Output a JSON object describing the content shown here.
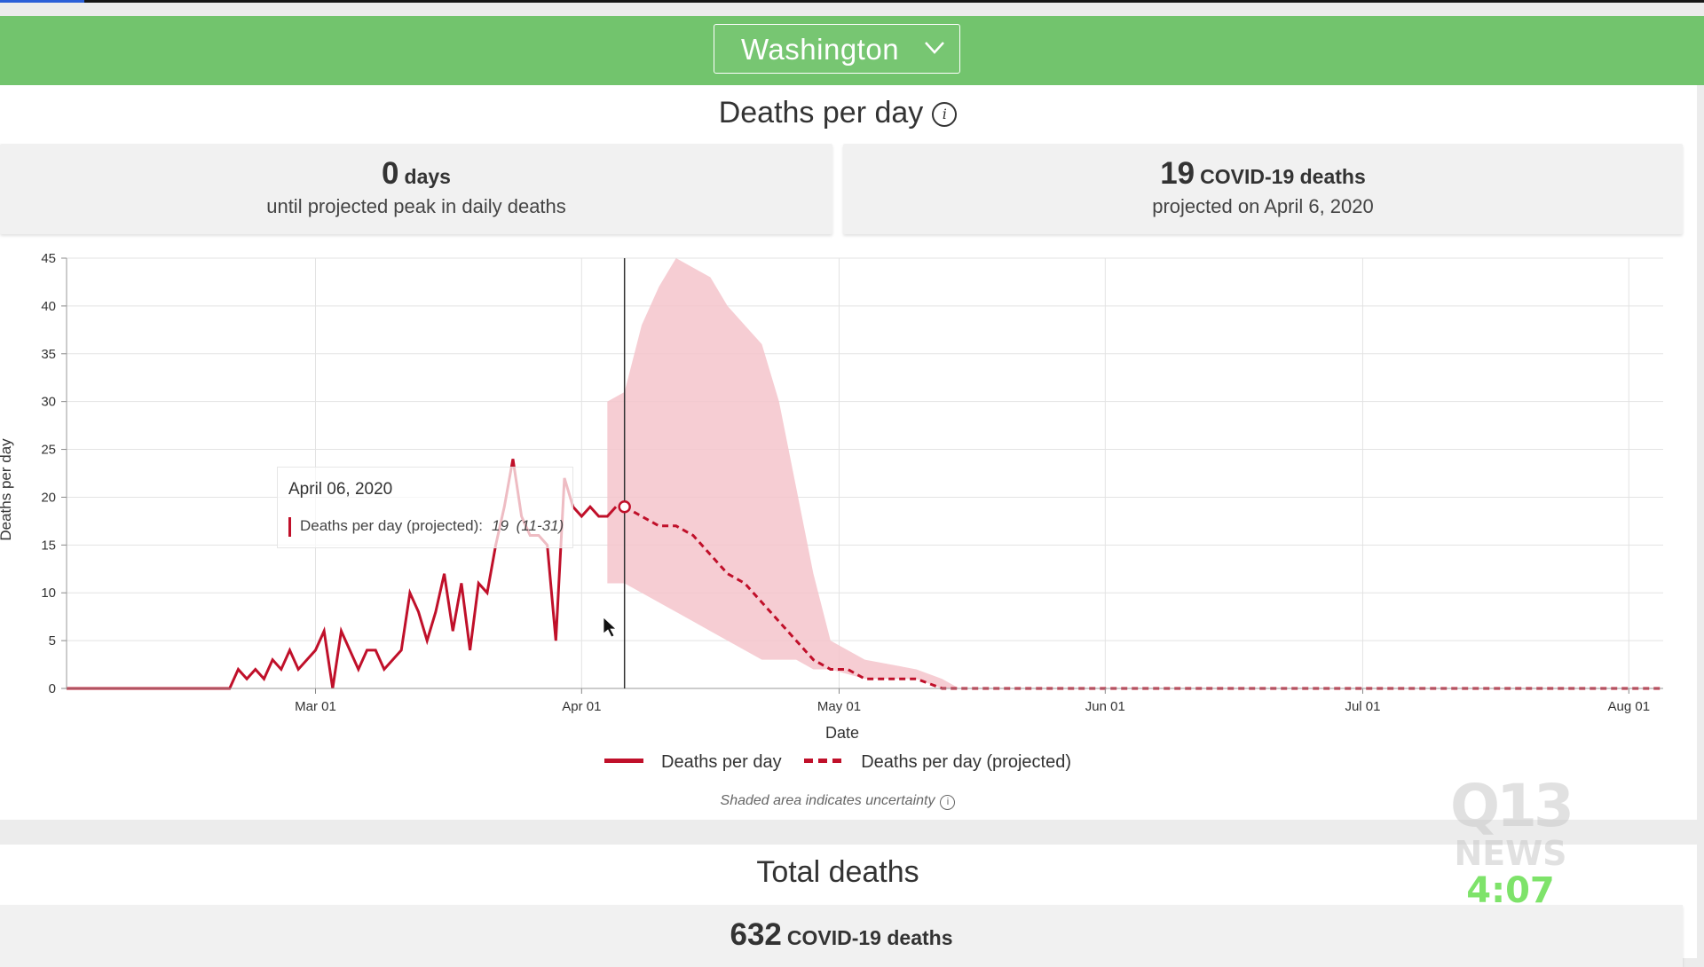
{
  "header": {
    "state_label": "Washington",
    "select_icon": "chevron-down-icon",
    "background_color": "#72c46d"
  },
  "deaths_section": {
    "title": "Deaths per day",
    "info_icon": "i",
    "card_left": {
      "value": "0",
      "unit": "days",
      "caption": "until projected peak in daily deaths"
    },
    "card_right": {
      "value": "19",
      "unit": "COVID-19 deaths",
      "caption": "projected on April 6, 2020"
    }
  },
  "tooltip": {
    "date": "April 06, 2020",
    "series": "Deaths per day (projected):",
    "value": "19",
    "range": "(11-31)"
  },
  "legend": {
    "solid": "Deaths per day",
    "dashed": "Deaths per day (projected)",
    "note": "Shaded area indicates uncertainty",
    "note_icon": "i"
  },
  "total_section": {
    "title": "Total deaths",
    "value": "632",
    "unit": "COVID-19 deaths"
  },
  "watermark": {
    "logo_top": "Q13",
    "logo_bottom": "NEWS",
    "time": "4:07"
  },
  "chart_data": {
    "type": "line",
    "title": "",
    "xlabel": "Date",
    "ylabel": "Deaths per day",
    "x_start": "2020-02-01",
    "x_end": "2020-08-05",
    "ylim": [
      0,
      45
    ],
    "y_ticks": [
      0,
      5,
      10,
      15,
      20,
      25,
      30,
      35,
      40,
      45
    ],
    "x_ticks": [
      {
        "date": "2020-03-01",
        "label": "Mar 01"
      },
      {
        "date": "2020-04-01",
        "label": "Apr 01"
      },
      {
        "date": "2020-05-01",
        "label": "May 01"
      },
      {
        "date": "2020-06-01",
        "label": "Jun 01"
      },
      {
        "date": "2020-07-01",
        "label": "Jul 01"
      },
      {
        "date": "2020-08-01",
        "label": "Aug 01"
      }
    ],
    "grid": true,
    "line_color": "#c0102a",
    "band_color": "#f4c4cb",
    "highlight_date": "2020-04-06",
    "highlight_value": 19,
    "series": [
      {
        "name": "Deaths per day",
        "style": "solid",
        "points": [
          [
            "2020-02-01",
            0
          ],
          [
            "2020-02-20",
            0
          ],
          [
            "2020-02-21",
            2
          ],
          [
            "2020-02-22",
            1
          ],
          [
            "2020-02-23",
            2
          ],
          [
            "2020-02-24",
            1
          ],
          [
            "2020-02-25",
            3
          ],
          [
            "2020-02-26",
            2
          ],
          [
            "2020-02-27",
            4
          ],
          [
            "2020-02-28",
            2
          ],
          [
            "2020-03-01",
            4
          ],
          [
            "2020-03-02",
            6
          ],
          [
            "2020-03-03",
            0
          ],
          [
            "2020-03-04",
            6
          ],
          [
            "2020-03-05",
            4
          ],
          [
            "2020-03-06",
            2
          ],
          [
            "2020-03-07",
            4
          ],
          [
            "2020-03-08",
            4
          ],
          [
            "2020-03-09",
            2
          ],
          [
            "2020-03-10",
            3
          ],
          [
            "2020-03-11",
            4
          ],
          [
            "2020-03-12",
            10
          ],
          [
            "2020-03-13",
            8
          ],
          [
            "2020-03-14",
            5
          ],
          [
            "2020-03-15",
            8
          ],
          [
            "2020-03-16",
            12
          ],
          [
            "2020-03-17",
            6
          ],
          [
            "2020-03-18",
            11
          ],
          [
            "2020-03-19",
            4
          ],
          [
            "2020-03-20",
            11
          ],
          [
            "2020-03-21",
            10
          ],
          [
            "2020-03-22",
            15
          ],
          [
            "2020-03-23",
            19
          ],
          [
            "2020-03-24",
            24
          ],
          [
            "2020-03-25",
            18
          ],
          [
            "2020-03-26",
            16
          ],
          [
            "2020-03-27",
            16
          ],
          [
            "2020-03-28",
            15
          ],
          [
            "2020-03-29",
            5
          ],
          [
            "2020-03-30",
            22
          ],
          [
            "2020-03-31",
            19
          ],
          [
            "2020-04-01",
            18
          ],
          [
            "2020-04-02",
            19
          ],
          [
            "2020-04-03",
            18
          ],
          [
            "2020-04-04",
            18
          ],
          [
            "2020-04-05",
            19
          ]
        ]
      },
      {
        "name": "Deaths per day (projected)",
        "style": "dashed",
        "points": [
          [
            "2020-04-06",
            19
          ],
          [
            "2020-04-08",
            18
          ],
          [
            "2020-04-10",
            17
          ],
          [
            "2020-04-12",
            17
          ],
          [
            "2020-04-14",
            16
          ],
          [
            "2020-04-16",
            14
          ],
          [
            "2020-04-18",
            12
          ],
          [
            "2020-04-20",
            11
          ],
          [
            "2020-04-22",
            9
          ],
          [
            "2020-04-24",
            7
          ],
          [
            "2020-04-26",
            5
          ],
          [
            "2020-04-28",
            3
          ],
          [
            "2020-04-30",
            2
          ],
          [
            "2020-05-02",
            2
          ],
          [
            "2020-05-04",
            1
          ],
          [
            "2020-05-07",
            1
          ],
          [
            "2020-05-10",
            1
          ],
          [
            "2020-05-13",
            0
          ],
          [
            "2020-08-05",
            0
          ]
        ]
      }
    ],
    "uncertainty_band": [
      [
        "2020-04-04",
        11,
        30
      ],
      [
        "2020-04-06",
        11,
        31
      ],
      [
        "2020-04-08",
        10,
        38
      ],
      [
        "2020-04-10",
        9,
        42
      ],
      [
        "2020-04-12",
        8,
        45
      ],
      [
        "2020-04-14",
        7,
        44
      ],
      [
        "2020-04-16",
        6,
        43
      ],
      [
        "2020-04-18",
        5,
        40
      ],
      [
        "2020-04-20",
        4,
        38
      ],
      [
        "2020-04-22",
        3,
        36
      ],
      [
        "2020-04-24",
        3,
        30
      ],
      [
        "2020-04-26",
        3,
        21
      ],
      [
        "2020-04-28",
        2,
        12
      ],
      [
        "2020-04-30",
        2,
        5
      ],
      [
        "2020-05-04",
        1,
        3
      ],
      [
        "2020-05-10",
        1,
        2
      ],
      [
        "2020-05-13",
        0,
        1
      ],
      [
        "2020-05-15",
        0,
        0
      ]
    ]
  }
}
